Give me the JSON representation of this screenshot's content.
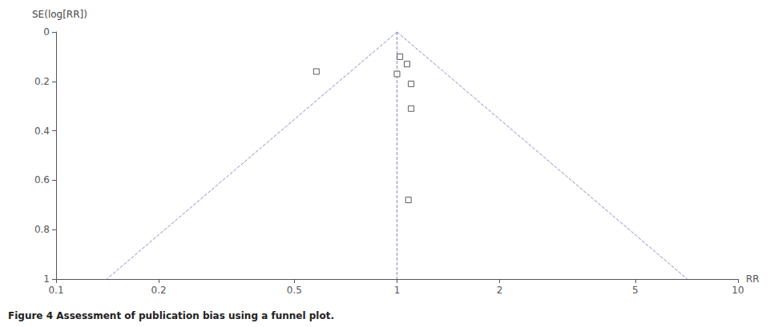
{
  "chart_data": {
    "type": "scatter",
    "xlabel": "RR",
    "ylabel": "SE(log[RR])",
    "caption": "Figure 4 Assessment of publication bias using a funnel plot.",
    "log": "x",
    "xlim": [
      0.1,
      10
    ],
    "xticks": [
      0.1,
      0.2,
      0.5,
      1,
      2,
      5,
      10
    ],
    "ylim": [
      0,
      1
    ],
    "yticks": [
      0,
      0.2,
      0.4,
      0.6,
      0.8,
      1
    ],
    "grid": false,
    "series": [
      {
        "type": "scatter",
        "marker": "square",
        "color": "#333333",
        "x": [
          0.58,
          1.02,
          1.07,
          1.0,
          1.1,
          1.1,
          1.08
        ],
        "values": [
          0.16,
          0.1,
          0.13,
          0.17,
          0.21,
          0.31,
          0.68
        ]
      },
      {
        "type": "line",
        "line_style": "dashed",
        "color": "#8888cc",
        "x": [
          1.0,
          0.1408584
        ],
        "values": [
          0,
          1
        ]
      },
      {
        "type": "line",
        "line_style": "dashed",
        "color": "#8888cc",
        "x": [
          1.0,
          7.099327
        ],
        "values": [
          0,
          1
        ]
      },
      {
        "type": "line",
        "line_style": "dashed",
        "color": "#8888cc",
        "x": [
          1.0,
          1.0
        ],
        "values": [
          0,
          1
        ]
      }
    ]
  }
}
